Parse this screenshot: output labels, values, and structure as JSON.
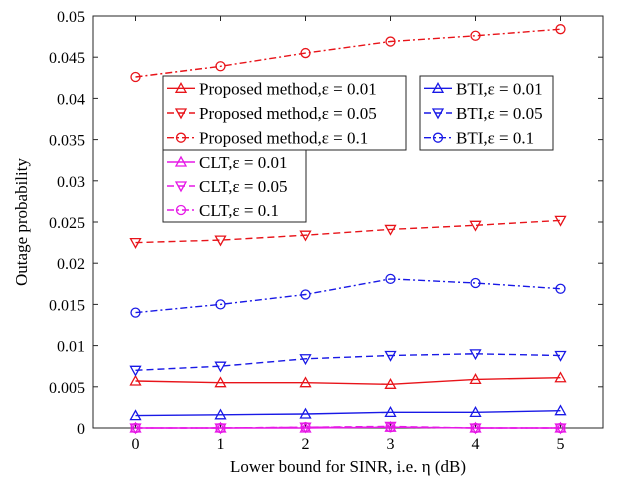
{
  "chart_data": {
    "type": "line",
    "title": "",
    "xlabel": "Lower bound for SINR, i.e. η (dB)",
    "ylabel": "Outage probability",
    "xlim": [
      -0.5,
      5.5
    ],
    "ylim": [
      0,
      0.05
    ],
    "xticks": [
      "0",
      "1",
      "2",
      "3",
      "4",
      "5"
    ],
    "yticks": [
      "0",
      "0.005",
      "0.01",
      "0.015",
      "0.02",
      "0.025",
      "0.03",
      "0.035",
      "0.04",
      "0.045",
      "0.05"
    ],
    "x": [
      0,
      1,
      2,
      3,
      4,
      5
    ],
    "grid": false,
    "series": [
      {
        "name": "Proposed method,ε = 0.01",
        "color": "#e8141a",
        "marker": "triangle-up",
        "dash": "solid",
        "values": [
          0.0057,
          0.0055,
          0.0055,
          0.0053,
          0.0059,
          0.0061
        ]
      },
      {
        "name": "Proposed method,ε = 0.05",
        "color": "#e8141a",
        "marker": "triangle-down",
        "dash": "dashed",
        "values": [
          0.0225,
          0.0228,
          0.0234,
          0.0241,
          0.0246,
          0.0252
        ]
      },
      {
        "name": "Proposed method,ε = 0.1",
        "color": "#e8141a",
        "marker": "circle",
        "dash": "dashdot",
        "values": [
          0.0426,
          0.0439,
          0.0455,
          0.0469,
          0.0476,
          0.0484
        ]
      },
      {
        "name": "BTI,ε = 0.01",
        "color": "#1919e6",
        "marker": "triangle-up",
        "dash": "solid",
        "values": [
          0.0015,
          0.0016,
          0.0017,
          0.0019,
          0.0019,
          0.0021
        ]
      },
      {
        "name": "BTI,ε = 0.05",
        "color": "#1919e6",
        "marker": "triangle-down",
        "dash": "dashed",
        "values": [
          0.007,
          0.0075,
          0.0084,
          0.0088,
          0.009,
          0.0088
        ]
      },
      {
        "name": "BTI,ε = 0.1",
        "color": "#1919e6",
        "marker": "circle",
        "dash": "dashdot",
        "values": [
          0.014,
          0.015,
          0.0162,
          0.0181,
          0.0176,
          0.0169
        ]
      },
      {
        "name": "CLT,ε = 0.01",
        "color": "#e619e6",
        "marker": "triangle-up",
        "dash": "solid",
        "values": [
          0.0,
          0.0,
          0.0,
          0.0001,
          0.0,
          0.0
        ]
      },
      {
        "name": "CLT,ε = 0.05",
        "color": "#e619e6",
        "marker": "triangle-down",
        "dash": "dashed",
        "values": [
          0.0,
          0.0,
          0.0001,
          0.0002,
          0.0,
          0.0
        ]
      },
      {
        "name": "CLT,ε = 0.1",
        "color": "#e619e6",
        "marker": "circle",
        "dash": "dashdot",
        "values": [
          0.0,
          0.0,
          0.0001,
          0.0001,
          0.0,
          0.0
        ]
      }
    ],
    "legends": [
      {
        "series": [
          0,
          1,
          2
        ],
        "placement": "upper-left"
      },
      {
        "series": [
          3,
          4,
          5
        ],
        "placement": "upper-right"
      },
      {
        "series": [
          6,
          7,
          8
        ],
        "placement": "middle-left"
      }
    ]
  }
}
